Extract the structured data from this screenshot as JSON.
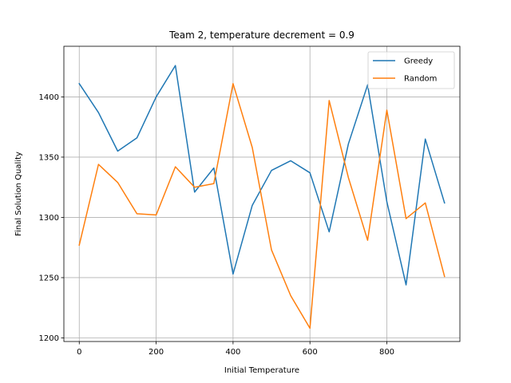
{
  "chart_data": {
    "type": "line",
    "title": "Team 2, temperature decrement = 0.9",
    "xlabel": "Initial Temperature",
    "ylabel": "Final Solution Quality",
    "xlim": [
      -40,
      990
    ],
    "ylim": [
      1197,
      1442
    ],
    "xticks": [
      0,
      200,
      400,
      600,
      800
    ],
    "yticks": [
      1200,
      1250,
      1300,
      1350,
      1400
    ],
    "grid": true,
    "legend_position": "top-right",
    "x": [
      0,
      50,
      100,
      150,
      200,
      250,
      300,
      350,
      400,
      450,
      500,
      550,
      600,
      650,
      700,
      750,
      800,
      850,
      900,
      950
    ],
    "series": [
      {
        "name": "Greedy",
        "color": "#1f77b4",
        "values": [
          1411,
          1387,
          1355,
          1366,
          1400,
          1426,
          1321,
          1341,
          1253,
          1310,
          1339,
          1347,
          1337,
          1288,
          1361,
          1410,
          1313,
          1244,
          1365,
          1312
        ]
      },
      {
        "name": "Random",
        "color": "#ff7f0e",
        "values": [
          1277,
          1344,
          1329,
          1303,
          1302,
          1342,
          1325,
          1328,
          1411,
          1358,
          1273,
          1235,
          1208,
          1397,
          1333,
          1281,
          1389,
          1299,
          1312,
          1251
        ]
      }
    ]
  }
}
